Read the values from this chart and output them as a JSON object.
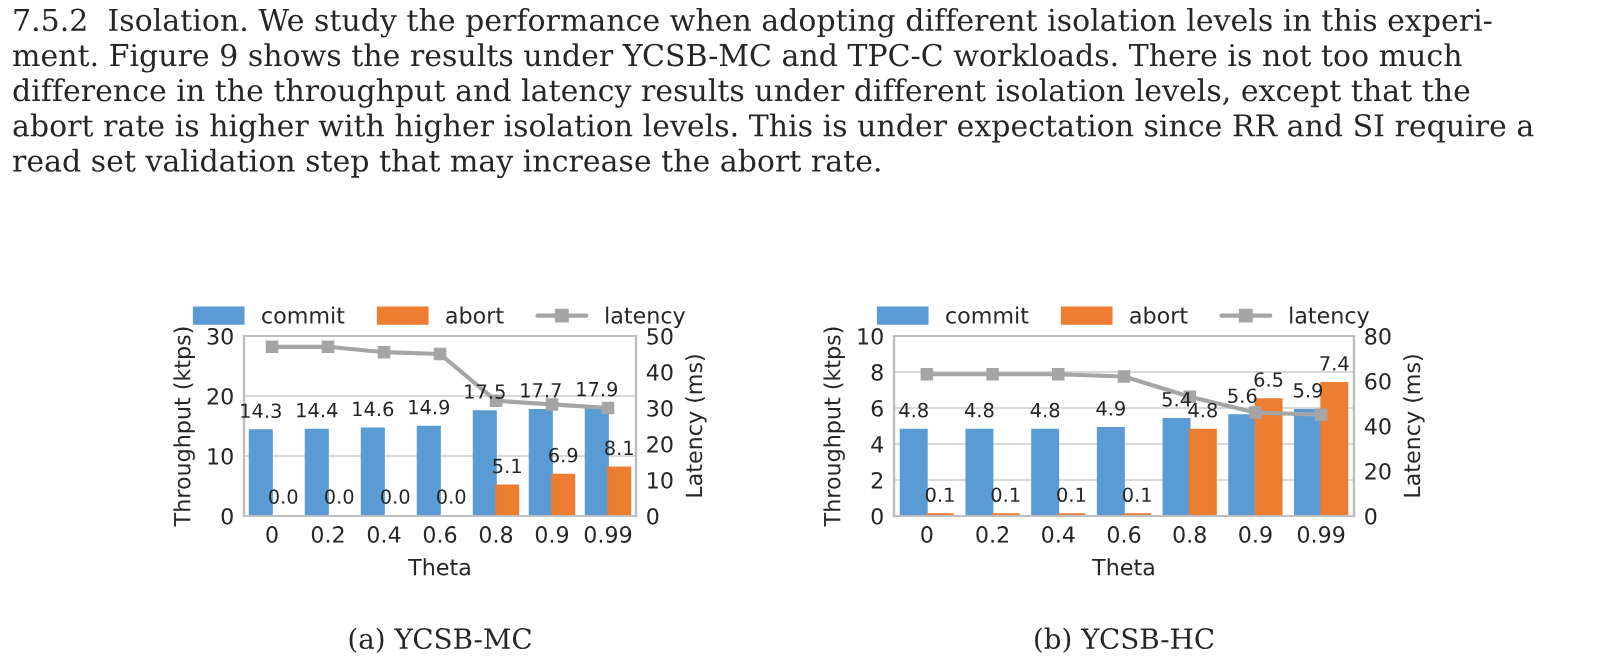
{
  "chart_data": [
    {
      "type": "bar",
      "title": "(a) YCSB-MC",
      "xlabel": "Theta",
      "ylabel": "Throughput (ktps)",
      "y2label": "Latency (ms)",
      "annotations": [
        "7.5.2  Isolation. We study the performance when adopting different isolation levels in this experi-\nment. Figure 9 shows the results under YCSB-MC and TPC-C workloads. There is not too much\ndifference in the throughput and latency results under different isolation levels, except that the\nabort rate is higher with higher isolation levels. This is under expectation since RR and SI require a\nread set validation step that may increase the abort rate."
      ],
      "categories": [
        "0",
        "0.2",
        "0.4",
        "0.6",
        "0.8",
        "0.9",
        "0.99"
      ],
      "series": [
        {
          "name": "commit",
          "color": "#5b9bd5",
          "values": [
            14.3,
            14.4,
            14.6,
            14.9,
            17.5,
            17.7,
            17.9
          ],
          "value_labels": [
            "14.3",
            "14.4",
            "14.6",
            "14.9",
            "17.5",
            "17.7",
            "17.9"
          ]
        },
        {
          "name": "abort",
          "color": "#ed7d31",
          "values": [
            0.0,
            0.0,
            0.0,
            0.0,
            5.1,
            6.9,
            8.1
          ],
          "value_labels": [
            "0.0",
            "0.0",
            "0.0",
            "0.0",
            "5.1",
            "6.9",
            "8.1"
          ]
        },
        {
          "name": "latency",
          "color": "#a5a5a5",
          "type": "line",
          "axis": "y2",
          "marker": "square",
          "values": [
            47,
            47,
            45.5,
            45,
            32,
            31,
            30
          ]
        }
      ],
      "ylim": [
        0,
        30
      ],
      "yticks": [
        0,
        10,
        20,
        30
      ],
      "y2lim": [
        0,
        50
      ],
      "y2ticks": [
        0,
        10,
        20,
        30,
        40,
        50
      ],
      "grid": "y",
      "legend": "top"
    },
    {
      "type": "bar",
      "title": "(b) YCSB-HC",
      "xlabel": "Theta",
      "ylabel": "Throughput (ktps)",
      "y2label": "Latency (ms)",
      "categories": [
        "0",
        "0.2",
        "0.4",
        "0.6",
        "0.8",
        "0.9",
        "0.99"
      ],
      "series": [
        {
          "name": "commit",
          "color": "#5b9bd5",
          "values": [
            4.8,
            4.8,
            4.8,
            4.9,
            5.4,
            5.6,
            5.9
          ],
          "value_labels": [
            "4.8",
            "4.8",
            "4.8",
            "4.9",
            "5.4",
            "5.6",
            "5.9"
          ]
        },
        {
          "name": "abort",
          "color": "#ed7d31",
          "values": [
            0.1,
            0.1,
            0.1,
            0.1,
            4.8,
            6.5,
            7.4
          ],
          "value_labels": [
            "0.1",
            "0.1",
            "0.1",
            "0.1",
            "4.8",
            "6.5",
            "7.4"
          ]
        },
        {
          "name": "latency",
          "color": "#a5a5a5",
          "type": "line",
          "axis": "y2",
          "marker": "square",
          "values": [
            63,
            63,
            63,
            62,
            53,
            46,
            45
          ]
        }
      ],
      "ylim": [
        0,
        10
      ],
      "yticks": [
        0,
        2,
        4,
        6,
        8,
        10
      ],
      "y2lim": [
        0,
        80
      ],
      "y2ticks": [
        0,
        20,
        40,
        60,
        80
      ],
      "grid": "y",
      "legend": "top"
    }
  ]
}
